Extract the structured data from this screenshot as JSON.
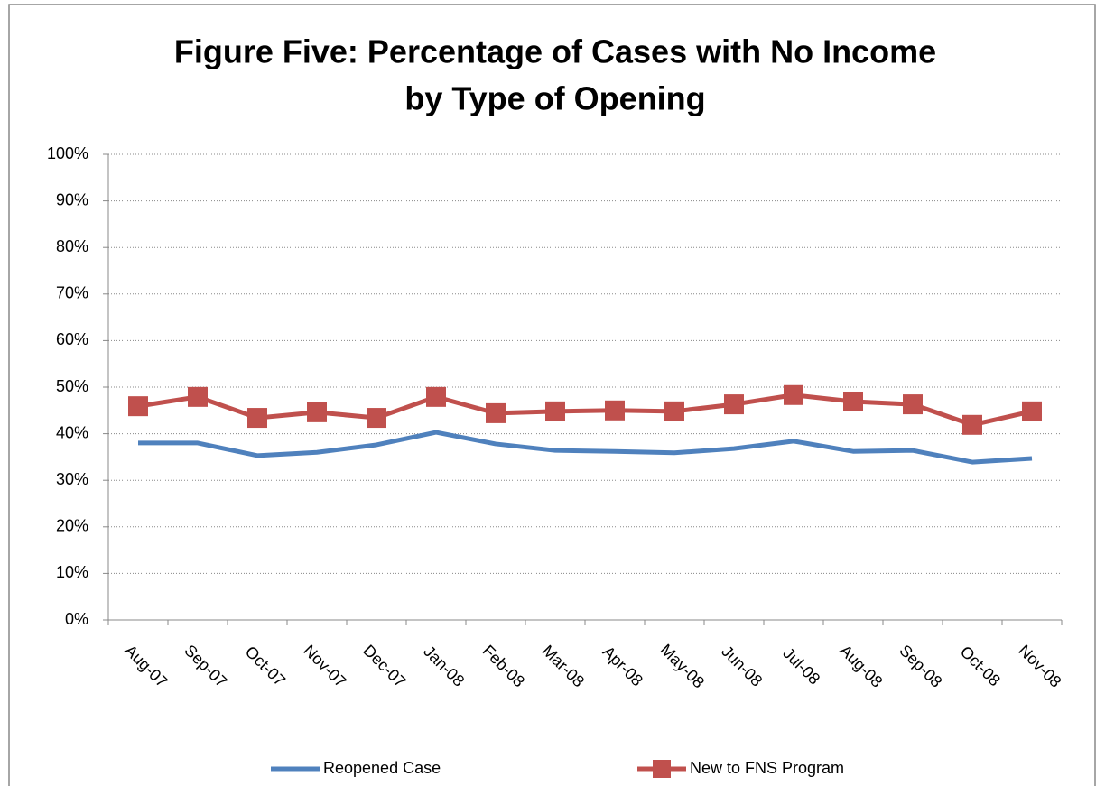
{
  "chart_data": {
    "type": "line",
    "title": "Figure Five: Percentage of Cases with No Income",
    "subtitle": "by Type of Opening",
    "categories": [
      "Aug-07",
      "Sep-07",
      "Oct-07",
      "Nov-07",
      "Dec-07",
      "Jan-08",
      "Feb-08",
      "Mar-08",
      "Apr-08",
      "May-08",
      "Jun-08",
      "Jul-08",
      "Aug-08",
      "Sep-08",
      "Oct-08",
      "Nov-08"
    ],
    "series": [
      {
        "name": "Reopened Case",
        "color": "#4f81bd",
        "values": [
          38.0,
          38.0,
          35.3,
          36.0,
          37.6,
          40.3,
          37.8,
          36.4,
          36.2,
          35.9,
          36.8,
          38.4,
          36.2,
          36.4,
          33.9,
          34.7
        ]
      },
      {
        "name": "New to FNS Program",
        "color": "#c0504d",
        "marker": "square",
        "values": [
          45.9,
          47.9,
          43.4,
          44.6,
          43.4,
          47.9,
          44.4,
          44.8,
          45.0,
          44.8,
          46.3,
          48.3,
          46.9,
          46.3,
          41.9,
          44.8
        ]
      }
    ],
    "ylim": [
      0,
      100
    ],
    "yticks": [
      {
        "value": 0,
        "label": "0%"
      },
      {
        "value": 10,
        "label": "10%"
      },
      {
        "value": 20,
        "label": "20%"
      },
      {
        "value": 30,
        "label": "30%"
      },
      {
        "value": 40,
        "label": "40%"
      },
      {
        "value": 50,
        "label": "50%"
      },
      {
        "value": 60,
        "label": "60%"
      },
      {
        "value": 70,
        "label": "70%"
      },
      {
        "value": 80,
        "label": "80%"
      },
      {
        "value": 90,
        "label": "90%"
      },
      {
        "value": 100,
        "label": "100%"
      }
    ],
    "grid": true,
    "legend": "bottom"
  }
}
